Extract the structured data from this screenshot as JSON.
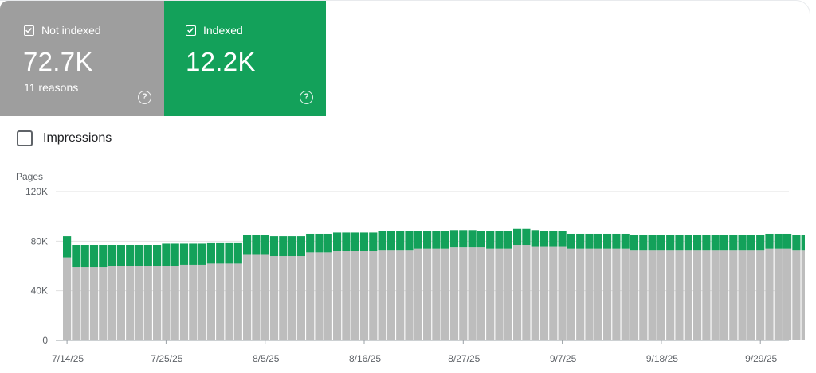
{
  "cards": {
    "not_indexed": {
      "label": "Not indexed",
      "value": "72.7K",
      "sub": "11 reasons",
      "color": "#9e9e9e"
    },
    "indexed": {
      "label": "Indexed",
      "value": "12.2K",
      "color": "#13a15a"
    }
  },
  "impressions_toggle": {
    "label": "Impressions",
    "checked": false
  },
  "chart_data": {
    "type": "bar",
    "stacked": true,
    "ylabel": "Pages",
    "ylim": [
      0,
      120000
    ],
    "y_ticks": [
      "0",
      "40K",
      "80K",
      "120K"
    ],
    "y_tick_values": [
      0,
      40000,
      80000,
      120000
    ],
    "x_tick_labels": [
      "7/14/25",
      "7/25/25",
      "8/5/25",
      "8/16/25",
      "8/27/25",
      "9/7/25",
      "9/18/25",
      "9/29/25"
    ],
    "x_tick_indices": [
      0,
      11,
      22,
      33,
      44,
      55,
      66,
      77
    ],
    "grid": true,
    "series": [
      {
        "name": "Not indexed",
        "color": "#bdbdbd",
        "values": [
          67000,
          59000,
          59000,
          59000,
          59000,
          60000,
          60000,
          60000,
          60000,
          60000,
          60000,
          60000,
          60000,
          61000,
          61000,
          61000,
          62000,
          62000,
          62000,
          62000,
          69000,
          69000,
          69000,
          68000,
          68000,
          68000,
          68000,
          71000,
          71000,
          71000,
          72000,
          72000,
          72000,
          72000,
          72000,
          73000,
          73000,
          73000,
          73000,
          74000,
          74000,
          74000,
          74000,
          75000,
          75000,
          75000,
          75000,
          74000,
          74000,
          74000,
          77000,
          77000,
          76000,
          76000,
          76000,
          76000,
          74000,
          74000,
          74000,
          74000,
          74000,
          74000,
          74000,
          73000,
          73000,
          73000,
          73000,
          73000,
          73000,
          73000,
          73000,
          73000,
          73000,
          73000,
          73000,
          73000,
          73000,
          73000,
          74000,
          74000,
          74000,
          73000,
          73000,
          73000,
          73000,
          73000,
          73000
        ]
      },
      {
        "name": "Indexed",
        "color": "#13a15a",
        "values": [
          17000,
          18000,
          18000,
          18000,
          18000,
          17000,
          17000,
          17000,
          17000,
          17000,
          17000,
          18000,
          18000,
          17000,
          17000,
          17000,
          17000,
          17000,
          17000,
          17000,
          16000,
          16000,
          16000,
          16000,
          16000,
          16000,
          16000,
          15000,
          15000,
          15000,
          15000,
          15000,
          15000,
          15000,
          15000,
          15000,
          15000,
          15000,
          15000,
          14000,
          14000,
          14000,
          14000,
          14000,
          14000,
          14000,
          13000,
          14000,
          14000,
          14000,
          13000,
          13000,
          13000,
          12000,
          12000,
          12000,
          12000,
          12000,
          12000,
          12000,
          12000,
          12000,
          12000,
          12000,
          12000,
          12000,
          12000,
          12000,
          12000,
          12000,
          12000,
          12000,
          12000,
          12000,
          12000,
          12000,
          12000,
          12000,
          12000,
          12000,
          12000,
          12000,
          12000,
          12000,
          12000,
          12000,
          12000
        ]
      }
    ]
  }
}
